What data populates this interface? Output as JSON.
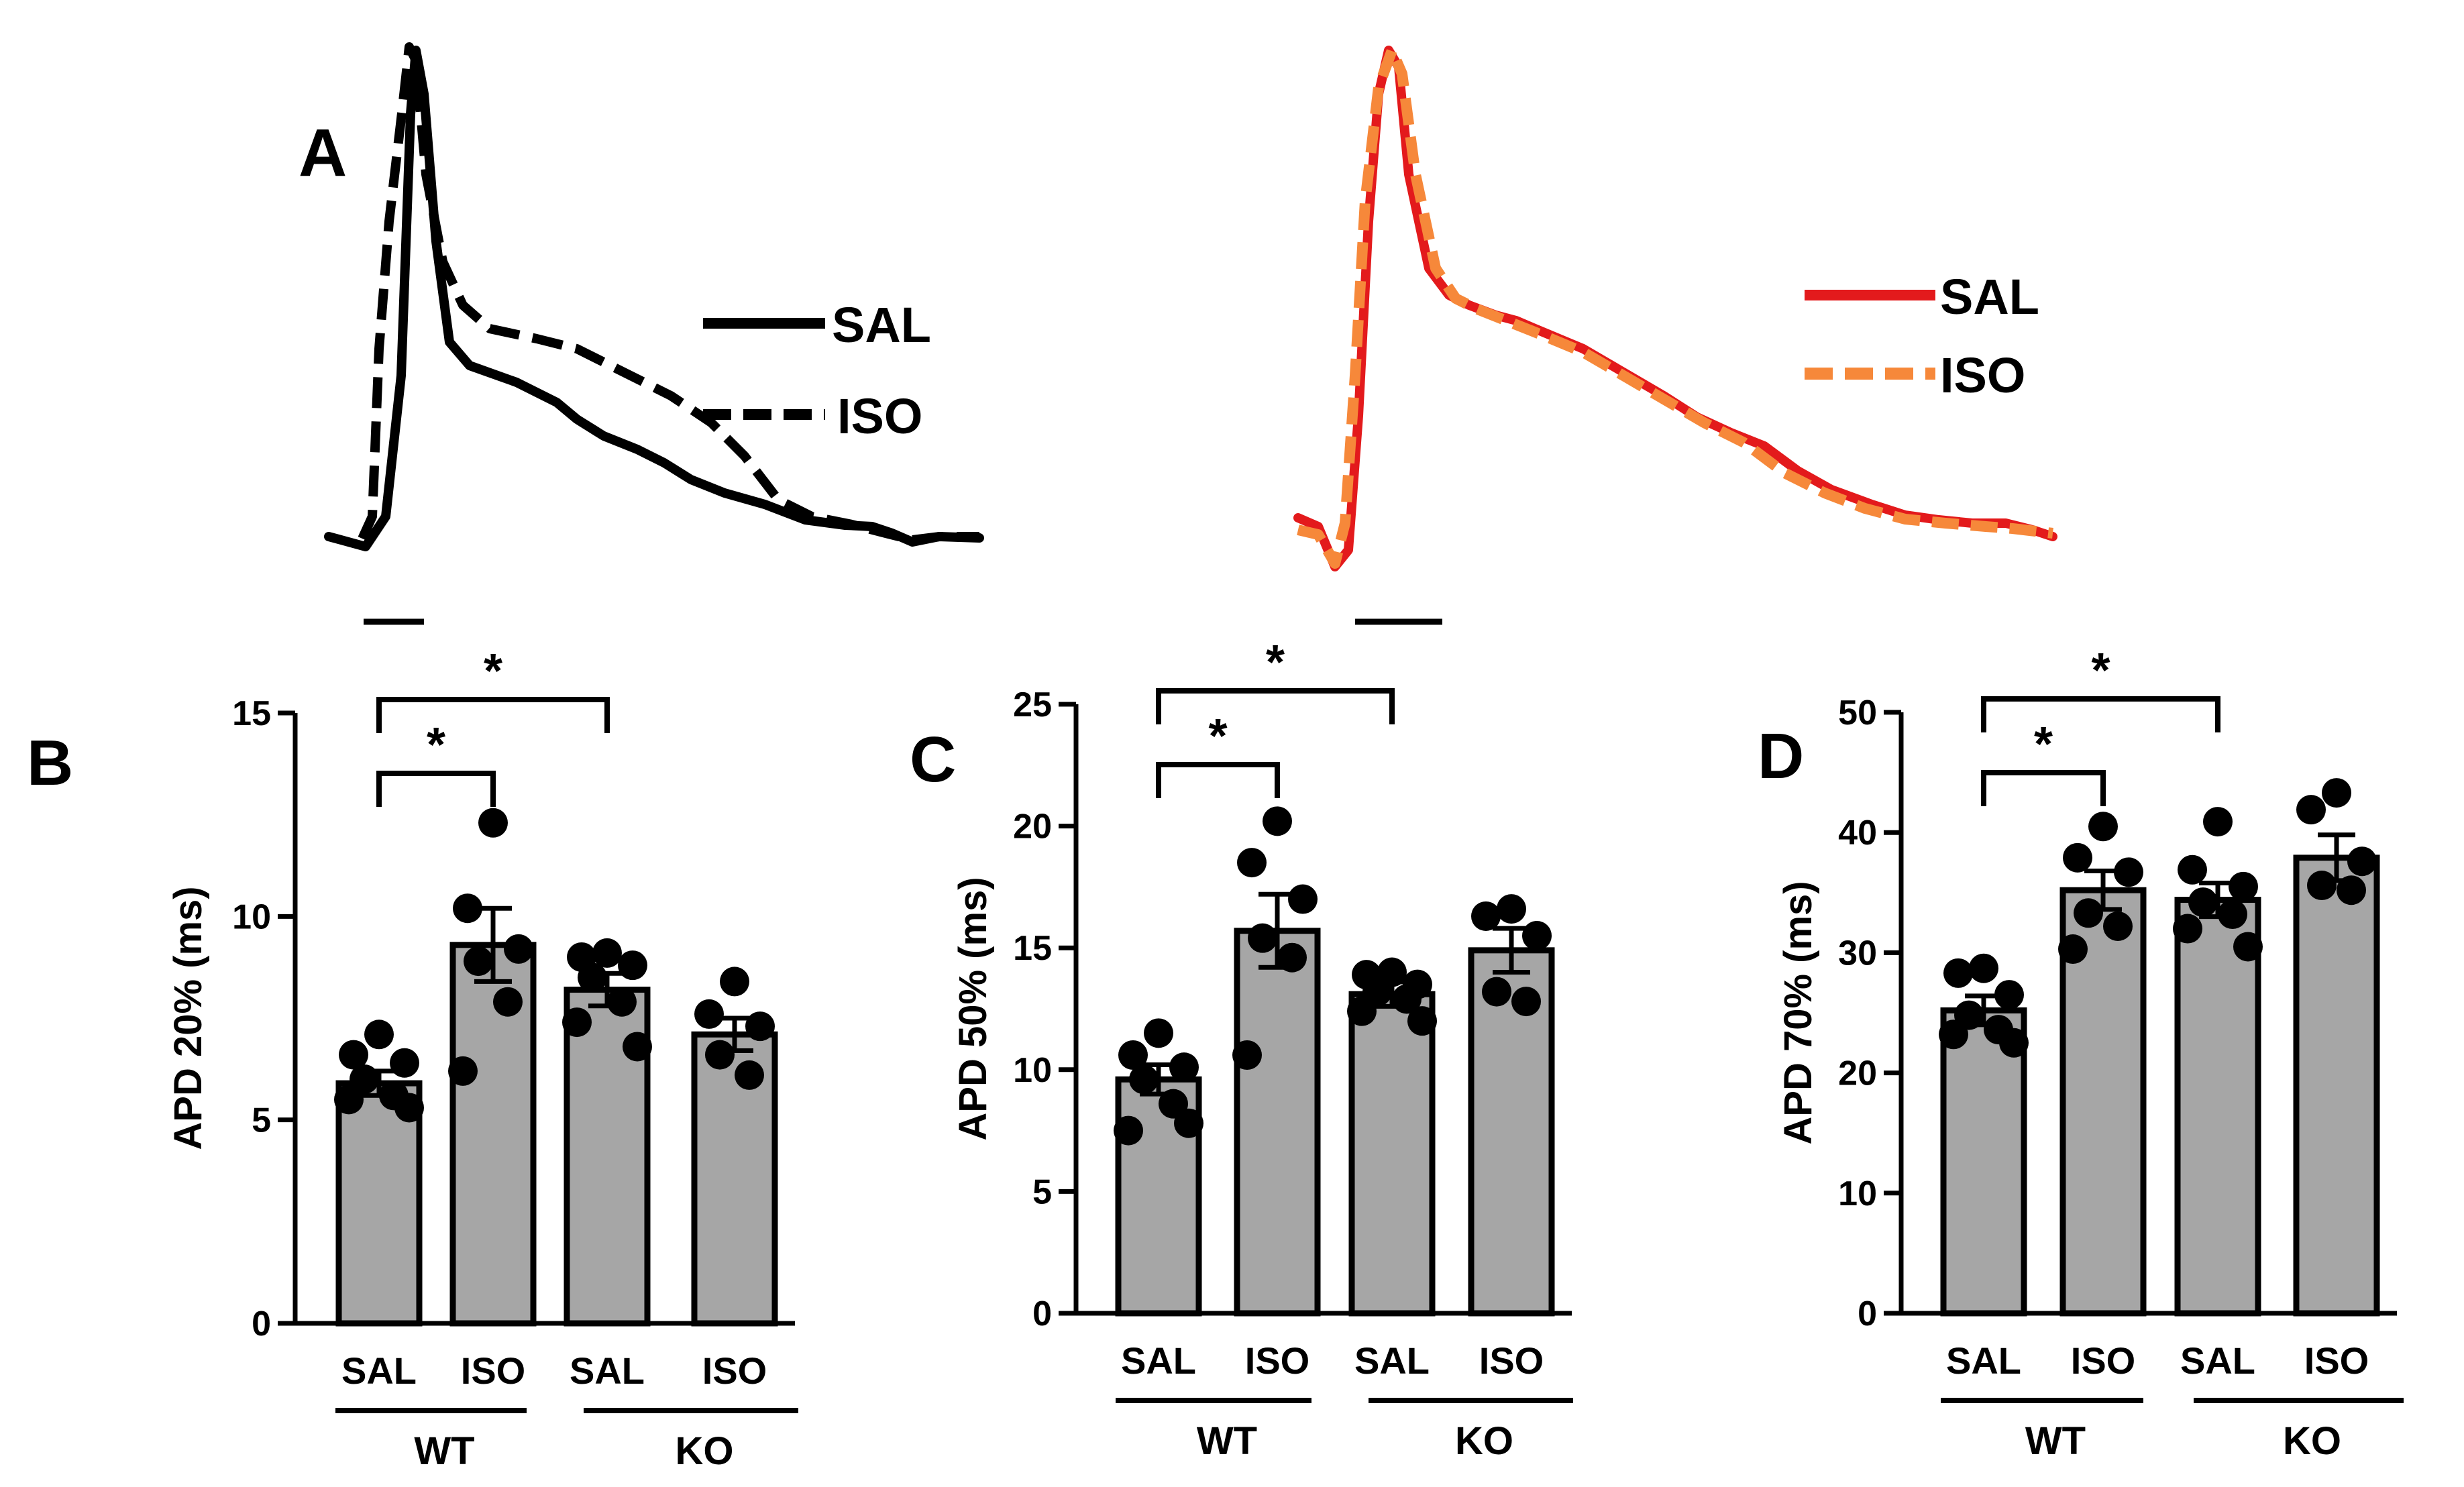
{
  "colors": {
    "wt": "#000000",
    "ko_sal": "#e31a1c",
    "ko_iso": "#f6883a",
    "bar_fill": "#a6a6a6",
    "ink": "#000000"
  },
  "panel_a": {
    "label": "A",
    "wt_legend": {
      "sal": "SAL",
      "iso": "ISO"
    },
    "ko_legend": {
      "sal": "SAL",
      "iso": "ISO"
    }
  },
  "chart_data": [
    {
      "type": "bar",
      "panel": "B",
      "title": "",
      "ylabel": "APD 20% (ms)",
      "ylim": [
        0,
        15
      ],
      "yticks": [
        0,
        5,
        10,
        15
      ],
      "categories": [
        "SAL",
        "ISO",
        "SAL",
        "ISO"
      ],
      "groups": [
        {
          "label": "WT"
        },
        {
          "label": "KO"
        }
      ],
      "values": [
        5.9,
        9.3,
        8.2,
        7.1
      ],
      "sem": [
        0.3,
        0.9,
        0.4,
        0.4
      ],
      "points": [
        [
          7.1,
          6.6,
          6.4,
          6.0,
          5.6,
          5.5,
          5.3
        ],
        [
          12.3,
          10.2,
          9.2,
          8.9,
          7.9,
          6.2
        ],
        [
          9.1,
          9.0,
          8.8,
          8.5,
          7.9,
          7.4,
          6.8
        ],
        [
          8.4,
          7.6,
          7.3,
          6.6,
          6.1
        ]
      ],
      "significance": [
        {
          "from": 0,
          "to": 1,
          "label": "*"
        },
        {
          "from": 0,
          "to": 2,
          "label": "*"
        }
      ]
    },
    {
      "type": "bar",
      "panel": "C",
      "title": "",
      "ylabel": "APD 50% (ms)",
      "ylim": [
        0,
        25
      ],
      "yticks": [
        0,
        5,
        10,
        15,
        20,
        25
      ],
      "categories": [
        "SAL",
        "ISO",
        "SAL",
        "ISO"
      ],
      "groups": [
        {
          "label": "WT"
        },
        {
          "label": "KO"
        }
      ],
      "values": [
        9.6,
        15.7,
        13.1,
        14.9
      ],
      "sem": [
        0.6,
        1.5,
        0.5,
        0.9
      ],
      "points": [
        [
          11.5,
          10.6,
          10.1,
          9.6,
          8.6,
          7.5,
          7.8
        ],
        [
          20.2,
          18.5,
          17.0,
          15.4,
          14.6,
          10.6
        ],
        [
          14.0,
          13.9,
          13.5,
          13.2,
          12.9,
          12.4,
          12.0
        ],
        [
          16.6,
          16.3,
          15.5,
          13.2,
          12.8
        ]
      ],
      "significance": [
        {
          "from": 0,
          "to": 1,
          "label": "*"
        },
        {
          "from": 0,
          "to": 2,
          "label": "*"
        }
      ]
    },
    {
      "type": "bar",
      "panel": "D",
      "title": "",
      "ylabel": "APD 70% (ms)",
      "ylim": [
        0,
        50
      ],
      "yticks": [
        0,
        10,
        20,
        30,
        40,
        50
      ],
      "categories": [
        "SAL",
        "ISO",
        "SAL",
        "ISO"
      ],
      "groups": [
        {
          "label": "WT"
        },
        {
          "label": "KO"
        }
      ],
      "values": [
        25.2,
        35.2,
        34.4,
        37.9
      ],
      "sem": [
        1.2,
        1.6,
        1.4,
        1.9
      ],
      "points": [
        [
          28.7,
          28.3,
          26.5,
          24.8,
          23.6,
          23.2,
          22.5
        ],
        [
          40.5,
          37.9,
          36.7,
          33.3,
          32.2,
          30.3
        ],
        [
          40.9,
          36.9,
          35.5,
          34.2,
          33.2,
          32.0,
          30.5
        ],
        [
          43.3,
          41.9,
          37.6,
          35.6,
          35.2
        ]
      ],
      "significance": [
        {
          "from": 0,
          "to": 1,
          "label": "*"
        },
        {
          "from": 0,
          "to": 2,
          "label": "*"
        }
      ]
    }
  ]
}
